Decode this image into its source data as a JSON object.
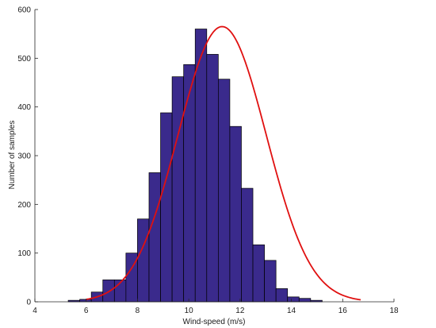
{
  "chart_data": {
    "type": "bar",
    "subtype": "histogram",
    "title": "",
    "xlabel": "Wind-speed (m/s)",
    "ylabel": "Number of samples",
    "xlim": [
      4,
      18
    ],
    "ylim": [
      0,
      600
    ],
    "xticks": [
      4,
      6,
      8,
      10,
      12,
      14,
      16,
      18
    ],
    "yticks": [
      0,
      100,
      200,
      300,
      400,
      500,
      600
    ],
    "grid": false,
    "bar_color": "#3a2a8c",
    "curve_color": "#e01010",
    "bins": {
      "edges": [
        5.3,
        5.75,
        6.2,
        6.65,
        7.1,
        7.55,
        8.0,
        8.45,
        8.9,
        9.35,
        9.8,
        10.25,
        10.7,
        11.15,
        11.6,
        12.05,
        12.5,
        12.95,
        13.4,
        13.85,
        14.3,
        14.75,
        15.2,
        15.65,
        16.1,
        16.55,
        17.0
      ],
      "values": [
        3,
        5,
        20,
        45,
        45,
        100,
        170,
        265,
        388,
        462,
        487,
        560,
        508,
        457,
        360,
        233,
        117,
        85,
        27,
        10,
        7,
        3,
        0,
        0,
        0,
        0
      ]
    },
    "series": [
      {
        "type": "line",
        "values": {
          "mean": 11.3,
          "std": 1.72,
          "peak": 565
        }
      }
    ]
  }
}
